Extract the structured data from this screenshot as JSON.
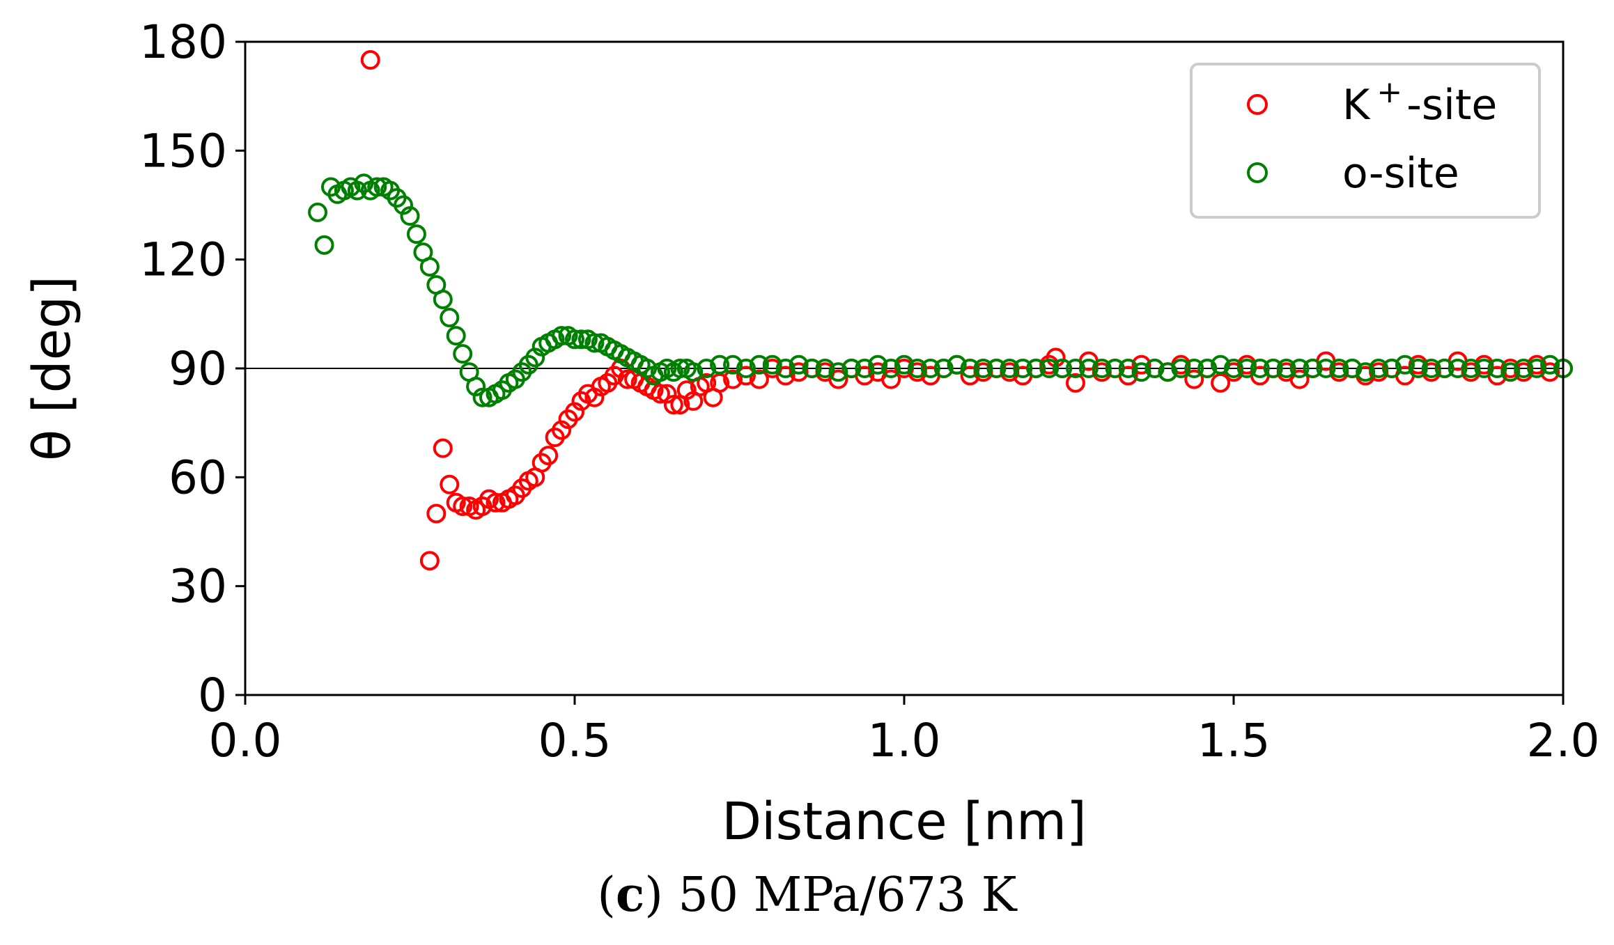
{
  "chart_data": {
    "type": "scatter",
    "title": "",
    "xlabel": "Distance [nm]",
    "ylabel": "θ [deg]",
    "xlim": [
      0.0,
      2.0
    ],
    "ylim": [
      0,
      180
    ],
    "xticks": [
      "0.0",
      "0.5",
      "1.0",
      "1.5",
      "2.0"
    ],
    "yticks": [
      "0",
      "30",
      "60",
      "90",
      "120",
      "150",
      "180"
    ],
    "reference_line": 90,
    "legend_position": "top-right",
    "series": [
      {
        "name": "K+-site",
        "legend_main": "K",
        "legend_sup": "+",
        "legend_rest": "-site",
        "color": "#ff0000",
        "points": [
          [
            0.19,
            175
          ],
          [
            0.28,
            37
          ],
          [
            0.29,
            50
          ],
          [
            0.3,
            68
          ],
          [
            0.31,
            58
          ],
          [
            0.32,
            53
          ],
          [
            0.33,
            52
          ],
          [
            0.34,
            52
          ],
          [
            0.35,
            51
          ],
          [
            0.36,
            52
          ],
          [
            0.37,
            54
          ],
          [
            0.38,
            53
          ],
          [
            0.39,
            53
          ],
          [
            0.4,
            54
          ],
          [
            0.41,
            55
          ],
          [
            0.42,
            57
          ],
          [
            0.43,
            59
          ],
          [
            0.44,
            60
          ],
          [
            0.45,
            64
          ],
          [
            0.46,
            66
          ],
          [
            0.47,
            71
          ],
          [
            0.48,
            73
          ],
          [
            0.49,
            76
          ],
          [
            0.5,
            78
          ],
          [
            0.51,
            81
          ],
          [
            0.52,
            83
          ],
          [
            0.53,
            82
          ],
          [
            0.54,
            85
          ],
          [
            0.55,
            86
          ],
          [
            0.56,
            88
          ],
          [
            0.57,
            90
          ],
          [
            0.58,
            87
          ],
          [
            0.59,
            87
          ],
          [
            0.6,
            86
          ],
          [
            0.61,
            85
          ],
          [
            0.62,
            84
          ],
          [
            0.63,
            83
          ],
          [
            0.64,
            83
          ],
          [
            0.65,
            80
          ],
          [
            0.66,
            80
          ],
          [
            0.67,
            84
          ],
          [
            0.68,
            81
          ],
          [
            0.69,
            85
          ],
          [
            0.7,
            86
          ],
          [
            0.71,
            82
          ],
          [
            0.72,
            86
          ],
          [
            0.74,
            87
          ],
          [
            0.76,
            88
          ],
          [
            0.78,
            87
          ],
          [
            0.8,
            90
          ],
          [
            0.82,
            88
          ],
          [
            0.84,
            89
          ],
          [
            0.86,
            90
          ],
          [
            0.88,
            89
          ],
          [
            0.9,
            87
          ],
          [
            0.92,
            90
          ],
          [
            0.94,
            88
          ],
          [
            0.96,
            89
          ],
          [
            0.98,
            87
          ],
          [
            1.0,
            90
          ],
          [
            1.02,
            89
          ],
          [
            1.04,
            88
          ],
          [
            1.06,
            90
          ],
          [
            1.08,
            91
          ],
          [
            1.1,
            88
          ],
          [
            1.12,
            89
          ],
          [
            1.14,
            90
          ],
          [
            1.16,
            89
          ],
          [
            1.18,
            88
          ],
          [
            1.2,
            90
          ],
          [
            1.22,
            91
          ],
          [
            1.23,
            93
          ],
          [
            1.24,
            90
          ],
          [
            1.26,
            86
          ],
          [
            1.28,
            92
          ],
          [
            1.3,
            89
          ],
          [
            1.32,
            90
          ],
          [
            1.34,
            88
          ],
          [
            1.36,
            91
          ],
          [
            1.38,
            90
          ],
          [
            1.4,
            89
          ],
          [
            1.42,
            91
          ],
          [
            1.44,
            87
          ],
          [
            1.46,
            90
          ],
          [
            1.48,
            86
          ],
          [
            1.5,
            89
          ],
          [
            1.52,
            91
          ],
          [
            1.54,
            88
          ],
          [
            1.56,
            90
          ],
          [
            1.58,
            89
          ],
          [
            1.6,
            87
          ],
          [
            1.62,
            90
          ],
          [
            1.64,
            92
          ],
          [
            1.66,
            89
          ],
          [
            1.68,
            90
          ],
          [
            1.7,
            88
          ],
          [
            1.72,
            89
          ],
          [
            1.74,
            90
          ],
          [
            1.76,
            88
          ],
          [
            1.78,
            91
          ],
          [
            1.8,
            89
          ],
          [
            1.82,
            90
          ],
          [
            1.84,
            92
          ],
          [
            1.86,
            89
          ],
          [
            1.88,
            91
          ],
          [
            1.9,
            88
          ],
          [
            1.92,
            90
          ],
          [
            1.94,
            89
          ],
          [
            1.96,
            91
          ],
          [
            1.98,
            89
          ],
          [
            2.0,
            90
          ]
        ]
      },
      {
        "name": "o-site",
        "legend_main": "o-site",
        "legend_sup": "",
        "legend_rest": "",
        "color": "#008000",
        "points": [
          [
            0.11,
            133
          ],
          [
            0.12,
            124
          ],
          [
            0.13,
            140
          ],
          [
            0.14,
            138
          ],
          [
            0.15,
            139
          ],
          [
            0.16,
            140
          ],
          [
            0.17,
            139
          ],
          [
            0.18,
            141
          ],
          [
            0.19,
            139
          ],
          [
            0.2,
            140
          ],
          [
            0.21,
            140
          ],
          [
            0.22,
            139
          ],
          [
            0.23,
            137
          ],
          [
            0.24,
            135
          ],
          [
            0.25,
            132
          ],
          [
            0.26,
            127
          ],
          [
            0.27,
            122
          ],
          [
            0.28,
            118
          ],
          [
            0.29,
            113
          ],
          [
            0.3,
            109
          ],
          [
            0.31,
            104
          ],
          [
            0.32,
            99
          ],
          [
            0.33,
            94
          ],
          [
            0.34,
            89
          ],
          [
            0.35,
            85
          ],
          [
            0.36,
            82
          ],
          [
            0.37,
            82
          ],
          [
            0.38,
            83
          ],
          [
            0.39,
            84
          ],
          [
            0.4,
            86
          ],
          [
            0.41,
            87
          ],
          [
            0.42,
            89
          ],
          [
            0.43,
            91
          ],
          [
            0.44,
            93
          ],
          [
            0.45,
            96
          ],
          [
            0.46,
            97
          ],
          [
            0.47,
            98
          ],
          [
            0.48,
            99
          ],
          [
            0.49,
            99
          ],
          [
            0.5,
            98
          ],
          [
            0.51,
            98
          ],
          [
            0.52,
            98
          ],
          [
            0.53,
            97
          ],
          [
            0.54,
            97
          ],
          [
            0.55,
            96
          ],
          [
            0.56,
            95
          ],
          [
            0.57,
            94
          ],
          [
            0.58,
            93
          ],
          [
            0.59,
            92
          ],
          [
            0.6,
            91
          ],
          [
            0.61,
            90
          ],
          [
            0.62,
            88
          ],
          [
            0.63,
            89
          ],
          [
            0.64,
            90
          ],
          [
            0.65,
            89
          ],
          [
            0.66,
            90
          ],
          [
            0.67,
            90
          ],
          [
            0.68,
            89
          ],
          [
            0.7,
            90
          ],
          [
            0.72,
            91
          ],
          [
            0.74,
            91
          ],
          [
            0.76,
            90
          ],
          [
            0.78,
            91
          ],
          [
            0.8,
            91
          ],
          [
            0.82,
            90
          ],
          [
            0.84,
            91
          ],
          [
            0.86,
            90
          ],
          [
            0.88,
            90
          ],
          [
            0.9,
            89
          ],
          [
            0.92,
            90
          ],
          [
            0.94,
            90
          ],
          [
            0.96,
            91
          ],
          [
            0.98,
            90
          ],
          [
            1.0,
            91
          ],
          [
            1.02,
            90
          ],
          [
            1.04,
            90
          ],
          [
            1.06,
            90
          ],
          [
            1.08,
            91
          ],
          [
            1.1,
            90
          ],
          [
            1.12,
            90
          ],
          [
            1.14,
            90
          ],
          [
            1.16,
            90
          ],
          [
            1.18,
            90
          ],
          [
            1.2,
            90
          ],
          [
            1.22,
            90
          ],
          [
            1.24,
            90
          ],
          [
            1.26,
            90
          ],
          [
            1.28,
            90
          ],
          [
            1.3,
            90
          ],
          [
            1.32,
            90
          ],
          [
            1.34,
            90
          ],
          [
            1.36,
            89
          ],
          [
            1.38,
            90
          ],
          [
            1.4,
            89
          ],
          [
            1.42,
            90
          ],
          [
            1.44,
            90
          ],
          [
            1.46,
            90
          ],
          [
            1.48,
            91
          ],
          [
            1.5,
            90
          ],
          [
            1.52,
            90
          ],
          [
            1.54,
            90
          ],
          [
            1.56,
            90
          ],
          [
            1.58,
            90
          ],
          [
            1.6,
            90
          ],
          [
            1.62,
            90
          ],
          [
            1.64,
            90
          ],
          [
            1.66,
            90
          ],
          [
            1.68,
            90
          ],
          [
            1.7,
            89
          ],
          [
            1.72,
            90
          ],
          [
            1.74,
            90
          ],
          [
            1.76,
            91
          ],
          [
            1.78,
            90
          ],
          [
            1.8,
            90
          ],
          [
            1.82,
            90
          ],
          [
            1.84,
            90
          ],
          [
            1.86,
            90
          ],
          [
            1.88,
            90
          ],
          [
            1.9,
            90
          ],
          [
            1.92,
            89
          ],
          [
            1.94,
            90
          ],
          [
            1.96,
            90
          ],
          [
            1.98,
            91
          ],
          [
            2.0,
            90
          ]
        ]
      }
    ]
  },
  "caption": {
    "label": "c",
    "open": "(",
    "close": ")",
    "text": " 50 MPa/673 K"
  }
}
